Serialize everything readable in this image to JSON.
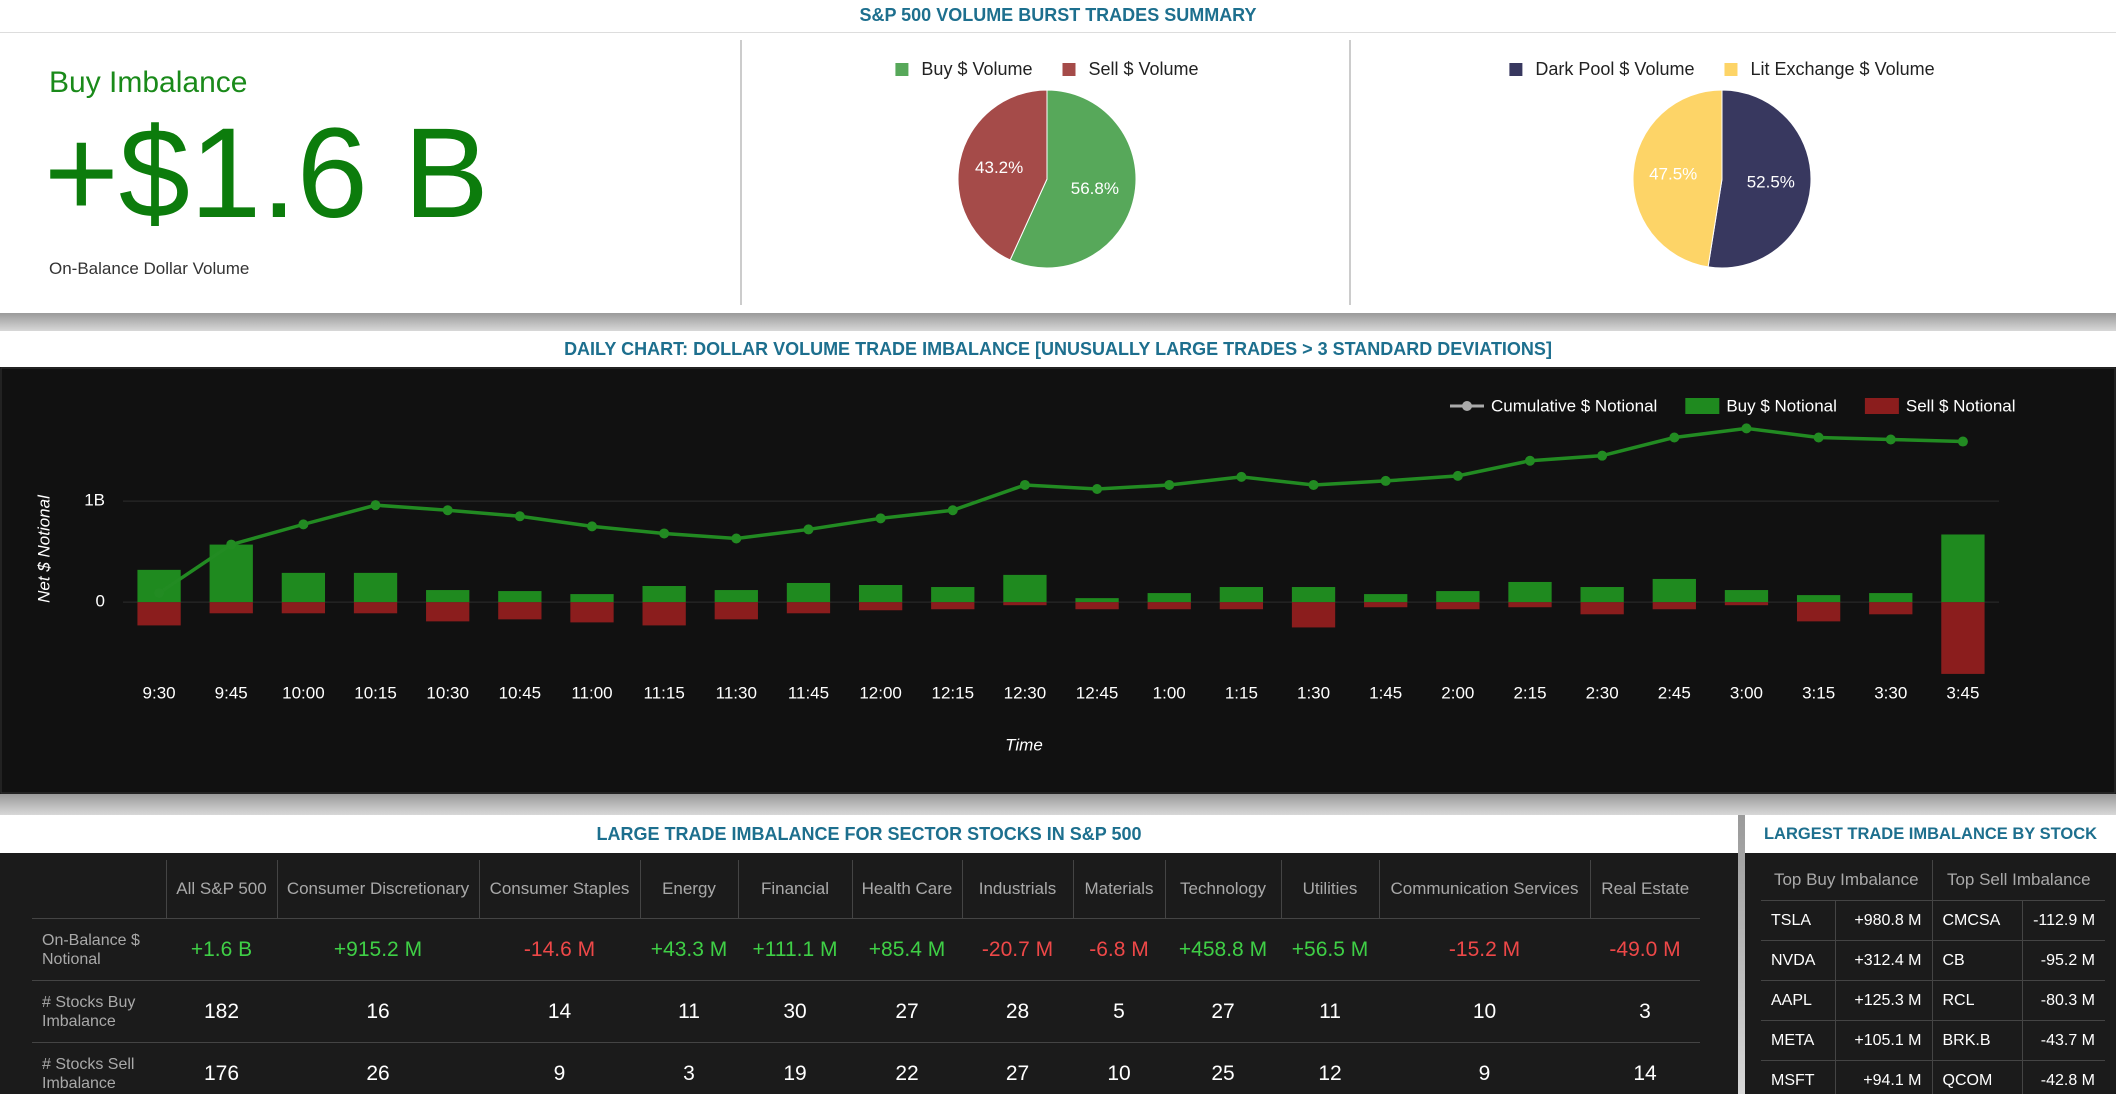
{
  "header": {
    "title": "S&P 500 VOLUME BURST TRADES SUMMARY"
  },
  "kpi": {
    "title": "Buy Imbalance",
    "value": "+$1.6 B",
    "caption": "On-Balance Dollar Volume"
  },
  "chart_data": [
    {
      "type": "pie",
      "categories": [
        "Buy $ Volume",
        "Sell $ Volume"
      ],
      "values": [
        56.8,
        43.2
      ],
      "value_labels": [
        "56.8%",
        "43.2%"
      ],
      "colors": [
        "#57a85a",
        "#a54b49"
      ]
    },
    {
      "type": "pie",
      "categories": [
        "Dark Pool $ Volume",
        "Lit Exchange $ Volume"
      ],
      "values": [
        52.5,
        47.5
      ],
      "value_labels": [
        "52.5%",
        "47.5%"
      ],
      "colors": [
        "#38385f",
        "#fdd467"
      ]
    },
    {
      "type": "combo",
      "title": "DAILY CHART: DOLLAR VOLUME TRADE IMBALANCE [UNUSUALLY LARGE TRADES > 3 STANDARD DEVIATIONS]",
      "ylabel": "Net $ Notional",
      "xlabel": "Time",
      "categories": [
        "9:30",
        "9:45",
        "10:00",
        "10:15",
        "10:30",
        "10:45",
        "11:00",
        "11:15",
        "11:30",
        "11:45",
        "12:00",
        "12:15",
        "12:30",
        "12:45",
        "1:00",
        "1:15",
        "1:30",
        "1:45",
        "2:00",
        "2:15",
        "2:30",
        "2:45",
        "3:00",
        "3:15",
        "3:30",
        "3:45"
      ],
      "ylim": [
        -800000000.0,
        2100000000.0
      ],
      "yticks": [
        0,
        {
          "value": 1000000000.0,
          "label": "1B"
        }
      ],
      "grid": true,
      "series": [
        {
          "name": "Cumulative $ Notional",
          "type": "line",
          "color": "#228b22",
          "values": [
            90000000.0,
            570000000.0,
            770000000.0,
            960000000.0,
            910000000.0,
            850000000.0,
            750000000.0,
            680000000.0,
            630000000.0,
            720000000.0,
            830000000.0,
            910000000.0,
            1160000000.0,
            1120000000.0,
            1160000000.0,
            1240000000.0,
            1160000000.0,
            1200000000.0,
            1250000000.0,
            1400000000.0,
            1450000000.0,
            1630000000.0,
            1720000000.0,
            1630000000.0,
            1610000000.0,
            1590000000.0
          ]
        },
        {
          "name": "Buy $ Notional",
          "type": "bar",
          "color": "#1f8a1f",
          "values": [
            320000000.0,
            570000000.0,
            290000000.0,
            290000000.0,
            120000000.0,
            110000000.0,
            80000000.0,
            160000000.0,
            120000000.0,
            190000000.0,
            170000000.0,
            150000000.0,
            270000000.0,
            40000000.0,
            90000000.0,
            150000000.0,
            150000000.0,
            80000000.0,
            110000000.0,
            200000000.0,
            150000000.0,
            230000000.0,
            120000000.0,
            70000000.0,
            90000000.0,
            670000000.0
          ]
        },
        {
          "name": "Sell $ Notional",
          "type": "bar",
          "color": "#8b1d1d",
          "values": [
            -230000000.0,
            -110000000.0,
            -110000000.0,
            -110000000.0,
            -190000000.0,
            -170000000.0,
            -200000000.0,
            -230000000.0,
            -170000000.0,
            -110000000.0,
            -80000000.0,
            -70000000.0,
            -30000000.0,
            -70000000.0,
            -70000000.0,
            -70000000.0,
            -250000000.0,
            -50000000.0,
            -70000000.0,
            -50000000.0,
            -120000000.0,
            -70000000.0,
            -30000000.0,
            -190000000.0,
            -120000000.0,
            -710000000.0
          ]
        }
      ]
    }
  ],
  "sector_table": {
    "title": "LARGE TRADE IMBALANCE FOR SECTOR STOCKS IN S&P 500",
    "columns": [
      "All S&P 500",
      "Consumer Discretionary",
      "Consumer Staples",
      "Energy",
      "Financial",
      "Health Care",
      "Industrials",
      "Materials",
      "Technology",
      "Utilities",
      "Communication Services",
      "Real Estate"
    ],
    "rows": [
      {
        "label": "On-Balance $ Notional",
        "cells": [
          "+1.6 B",
          "+915.2 M",
          "-14.6 M",
          "+43.3 M",
          "+111.1 M",
          "+85.4 M",
          "-20.7 M",
          "-6.8 M",
          "+458.8 M",
          "+56.5 M",
          "-15.2 M",
          "-49.0 M"
        ]
      },
      {
        "label": "# Stocks Buy Imbalance",
        "cells": [
          182,
          16,
          14,
          11,
          30,
          27,
          28,
          5,
          27,
          11,
          10,
          3
        ]
      },
      {
        "label": "# Stocks Sell Imbalance",
        "cells": [
          176,
          26,
          9,
          3,
          19,
          22,
          27,
          10,
          25,
          12,
          9,
          14
        ]
      }
    ]
  },
  "stock_table": {
    "title": "LARGEST TRADE IMBALANCE BY STOCK",
    "columns": [
      "Top Buy Imbalance",
      "Top Sell Imbalance"
    ],
    "rows": [
      [
        "TSLA",
        "+980.8 M",
        "CMCSA",
        "-112.9 M"
      ],
      [
        "NVDA",
        "+312.4 M",
        "CB",
        "-95.2 M"
      ],
      [
        "AAPL",
        "+125.3 M",
        "RCL",
        "-80.3 M"
      ],
      [
        "META",
        "+105.1 M",
        "BRK.B",
        "-43.7 M"
      ],
      [
        "MSFT",
        "+94.1 M",
        "QCOM",
        "-42.8 M"
      ]
    ]
  }
}
